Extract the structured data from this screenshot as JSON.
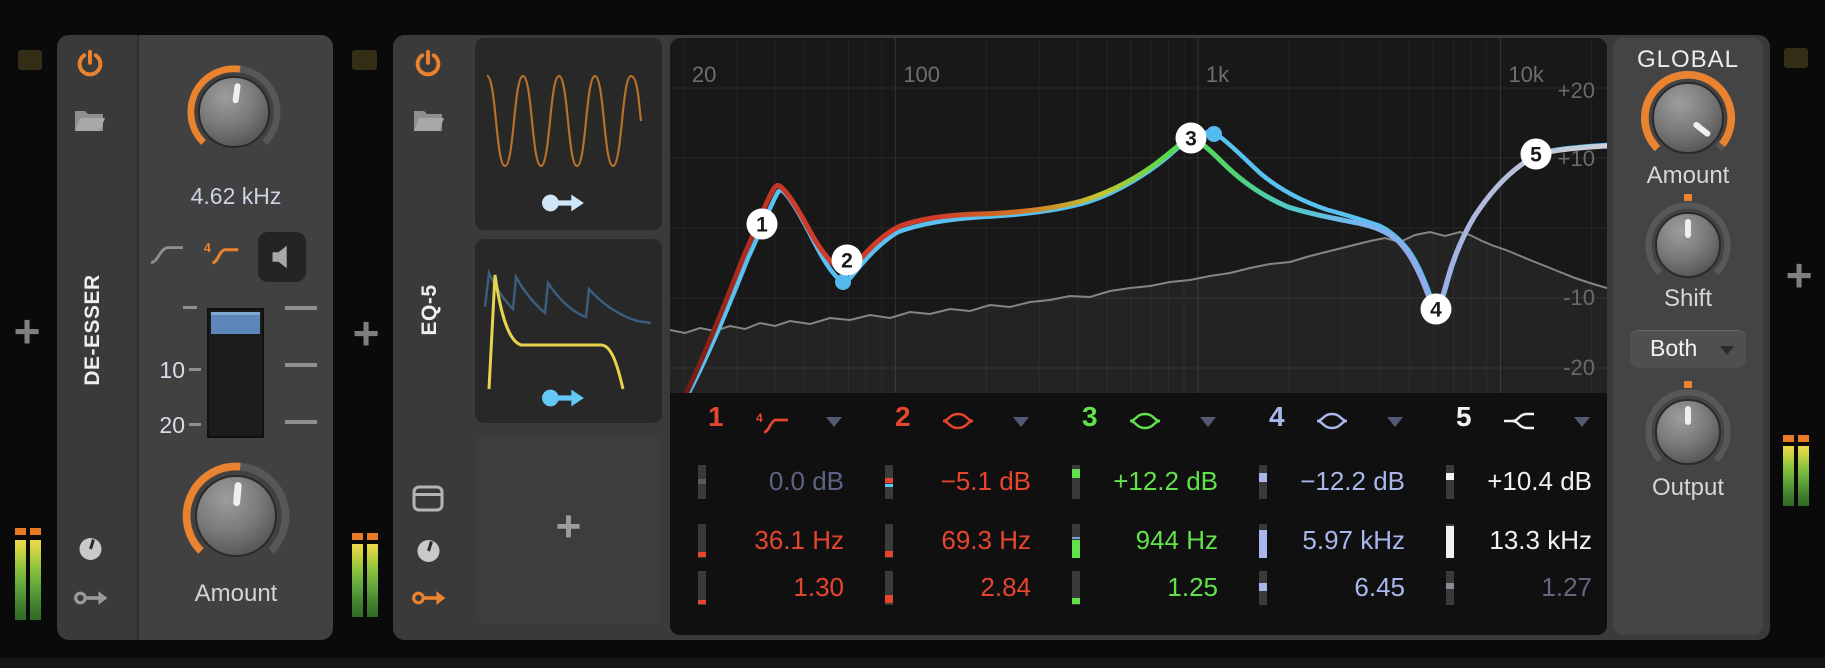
{
  "icons": {
    "plus": "+"
  },
  "colors": {
    "accent_orange": "#ea8330",
    "band_red": "#e6462f",
    "band_green": "#61e24b",
    "band_lavender": "#a9b7ec",
    "band_white": "#f1f1f3",
    "muted_value": "#5d6384",
    "modulated_curve_blue": "#59c1f0",
    "threshold_blue": "#5d87ba"
  },
  "deesser": {
    "title": "DE-ESSER",
    "freq_value": "4.62 kHz",
    "scale": {
      "t10": "10",
      "t20": "20"
    },
    "amount_label": "Amount"
  },
  "eq": {
    "title": "EQ-5",
    "axis": {
      "f20": "20",
      "f100": "100",
      "f1k": "1k",
      "f10k": "10k",
      "p20": "+20",
      "p10": "+10",
      "m10": "-10",
      "m20": "-20"
    },
    "bands": [
      {
        "num": "1",
        "type": "highpass-4pole",
        "gain": "0.0 dB",
        "freq": "36.1 Hz",
        "q": "1.30"
      },
      {
        "num": "2",
        "type": "bell",
        "gain": "−5.1 dB",
        "freq": "69.3 Hz",
        "q": "2.84"
      },
      {
        "num": "3",
        "type": "bell",
        "gain": "+12.2 dB",
        "freq": "944 Hz",
        "q": "1.25"
      },
      {
        "num": "4",
        "type": "bell",
        "gain": "−12.2 dB",
        "freq": "5.97 kHz",
        "q": "6.45"
      },
      {
        "num": "5",
        "type": "high-shelf",
        "gain": "+10.4 dB",
        "freq": "13.3 kHz",
        "q": "1.27"
      }
    ],
    "global": {
      "title": "GLOBAL",
      "amount_label": "Amount",
      "shift_label": "Shift",
      "mode_value": "Both",
      "output_label": "Output"
    }
  }
}
